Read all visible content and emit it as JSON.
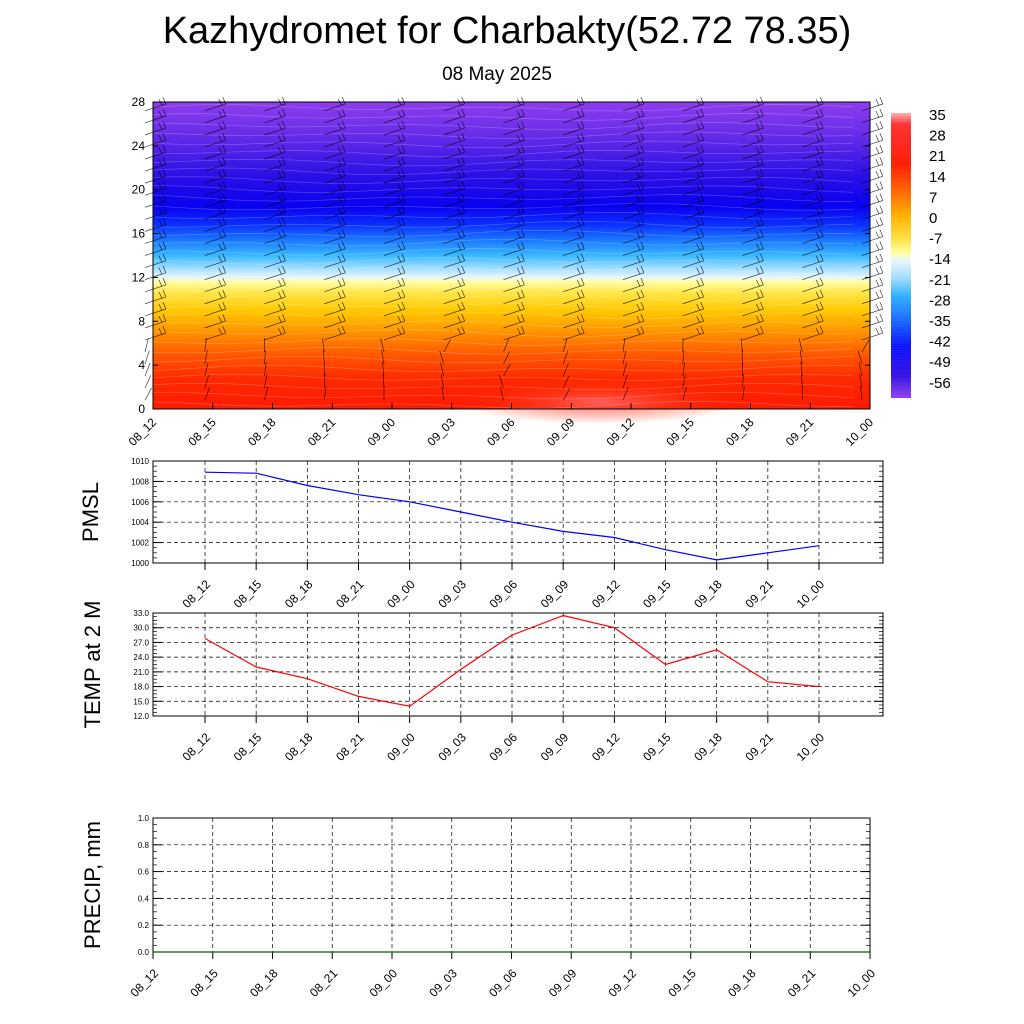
{
  "title": "Kazhydromet for Charbakty(52.72 78.35)",
  "subtitle": "08 May 2025",
  "chart_data": [
    {
      "type": "heatmap",
      "description_vars": "cross-section of temperature with wind barbs",
      "x_ticks": [
        "08_12",
        "08_15",
        "08_18",
        "08_21",
        "09_00",
        "09_03",
        "09_06",
        "09_09",
        "09_12",
        "09_15",
        "09_18",
        "09_21",
        "10_00"
      ],
      "y_ticks": [
        "0",
        "4",
        "8",
        "12",
        "16",
        "20",
        "24",
        "28"
      ],
      "ylim": [
        0,
        28
      ],
      "colorbar_labels": [
        "35",
        "28",
        "21",
        "14",
        "7",
        "0",
        "-7",
        "-14",
        "-21",
        "-28",
        "-35",
        "-42",
        "-49",
        "-56"
      ],
      "colorbar_range": [
        -60,
        38
      ],
      "colors": [
        "#ff0000",
        "#ff8c00",
        "#ffd700",
        "#ffff99",
        "#e6f5ff",
        "#33ccff",
        "#1e90ff",
        "#0000ff",
        "#1e1ed2",
        "#8c3ce6"
      ]
    },
    {
      "type": "line",
      "ylabel": "PMSL",
      "ylim": [
        1000,
        1010
      ],
      "y_ticks": [
        "1000",
        "1002",
        "1004",
        "1006",
        "1008",
        "1010"
      ],
      "x_ticks": [
        "08_12",
        "08_15",
        "08_18",
        "08_21",
        "09_00",
        "09_03",
        "09_06",
        "09_09",
        "09_12",
        "09_15",
        "09_18",
        "09_21",
        "10_00"
      ],
      "x": [
        "08_12",
        "08_15",
        "08_18",
        "08_21",
        "09_00",
        "09_03",
        "09_06",
        "09_09",
        "09_12",
        "09_15",
        "09_18",
        "09_21",
        "10_00"
      ],
      "values": [
        1008.9,
        1008.8,
        1007.6,
        1006.7,
        1006.0,
        1005.0,
        1004.0,
        1003.1,
        1002.5,
        1001.3,
        1000.3,
        1001.0,
        1001.7
      ],
      "color": "#0000ff"
    },
    {
      "type": "line",
      "ylabel": "TEMP at 2 M",
      "ylim": [
        12,
        33
      ],
      "y_ticks": [
        "12.0",
        "15.0",
        "18.0",
        "21.0",
        "24.0",
        "27.0",
        "30.0",
        "33.0"
      ],
      "x_ticks": [
        "08_12",
        "08_15",
        "08_18",
        "08_21",
        "09_00",
        "09_03",
        "09_06",
        "09_09",
        "09_12",
        "09_15",
        "09_18",
        "09_21",
        "10_00"
      ],
      "x": [
        "08_12",
        "08_15",
        "08_18",
        "08_21",
        "09_00",
        "09_03",
        "09_06",
        "09_09",
        "09_12",
        "09_15",
        "09_18",
        "09_21",
        "10_00"
      ],
      "values": [
        27.8,
        22.0,
        19.6,
        16.0,
        14.0,
        21.5,
        28.5,
        32.5,
        30.0,
        22.5,
        25.5,
        19.0,
        18.0
      ],
      "color": "#ff0000"
    },
    {
      "type": "line",
      "ylabel": "PRECIP, mm",
      "ylim": [
        0,
        1
      ],
      "y_ticks": [
        "0.0",
        "0.2",
        "0.4",
        "0.6",
        "0.8",
        "1.0"
      ],
      "x_ticks": [
        "08_12",
        "08_15",
        "08_18",
        "08_21",
        "09_00",
        "09_03",
        "09_06",
        "09_09",
        "09_12",
        "09_15",
        "09_18",
        "09_21",
        "10_00"
      ],
      "x": [
        "08_12",
        "08_15",
        "08_18",
        "08_21",
        "09_00",
        "09_03",
        "09_06",
        "09_09",
        "09_12",
        "09_15",
        "09_18",
        "09_21",
        "10_00"
      ],
      "values": [
        0,
        0,
        0,
        0,
        0,
        0,
        0,
        0,
        0,
        0,
        0,
        0,
        0
      ],
      "color": "#006400"
    }
  ]
}
